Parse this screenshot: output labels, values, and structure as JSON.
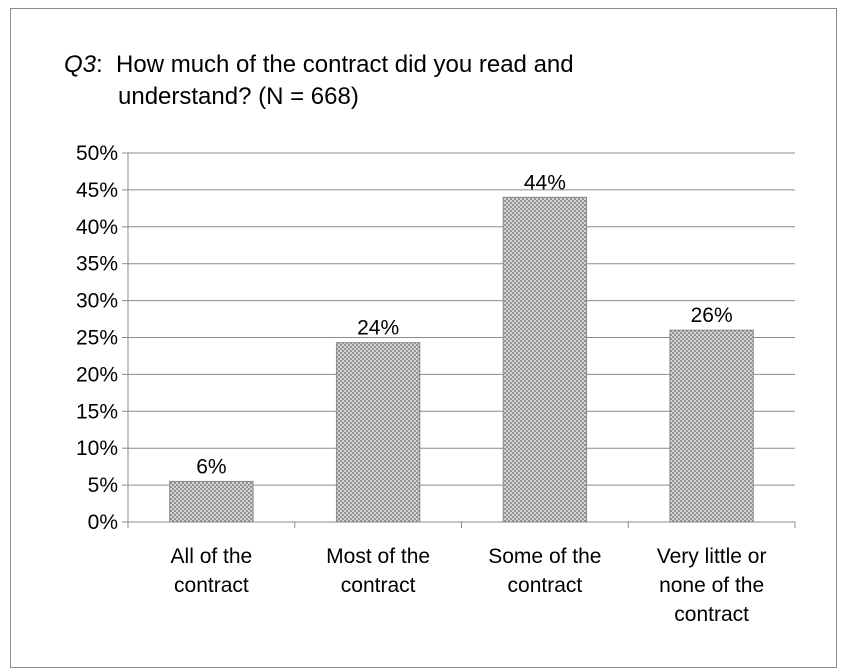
{
  "chart_data": {
    "type": "bar",
    "title_prefix": "Q3",
    "title_rest_line1": ":  How much of the contract did you read and",
    "title_line2": "understand? (N = 668)",
    "categories": [
      [
        "All of the",
        "contract"
      ],
      [
        "Most of the",
        "contract"
      ],
      [
        "Some of the",
        "contract"
      ],
      [
        "Very little or",
        "none of the",
        "contract"
      ]
    ],
    "values": [
      5.5,
      24.3,
      44,
      26
    ],
    "data_labels": [
      "6%",
      "24%",
      "44%",
      "26%"
    ],
    "ylim": [
      0,
      50
    ],
    "yticks": [
      "0%",
      "5%",
      "10%",
      "15%",
      "20%",
      "25%",
      "30%",
      "35%",
      "40%",
      "45%",
      "50%"
    ],
    "grid": true,
    "legend": "none",
    "bar_fill": "#c8c8c8",
    "bar_pattern_dot": "#7a7a7a",
    "bar_edge": "#8a8a8a",
    "grid_color": "#8c8c8c"
  }
}
